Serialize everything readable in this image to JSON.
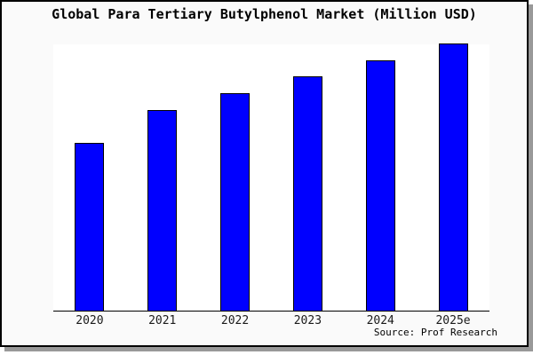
{
  "title": "Global Para Tertiary Butylphenol Market (Million USD)",
  "source_note": "Source: Prof Research",
  "colors": {
    "bar": "#0000ff",
    "bar_border": "#000000",
    "frame_background": "#fafafa",
    "plot_background": "#ffffff",
    "frame_border": "#000000",
    "shadow": "#999999",
    "axis": "#000000"
  },
  "chart_data": {
    "type": "bar",
    "title": "Global Para Tertiary Butylphenol Market (Million USD)",
    "categories": [
      "2020",
      "2021",
      "2022",
      "2023",
      "2024",
      "2025e"
    ],
    "values": [
      62.7,
      75.0,
      81.3,
      87.7,
      93.7,
      100.0
    ],
    "value_note": "No y-axis or data labels are shown in the chart; values are relative bar heights indexed to 2025e = 100",
    "xlabel": "",
    "ylabel": "",
    "ylim": [
      0,
      100
    ],
    "grid": false,
    "legend": "none",
    "bar_color": "#0000ff",
    "annotations": [
      "Source: Prof Research"
    ]
  }
}
